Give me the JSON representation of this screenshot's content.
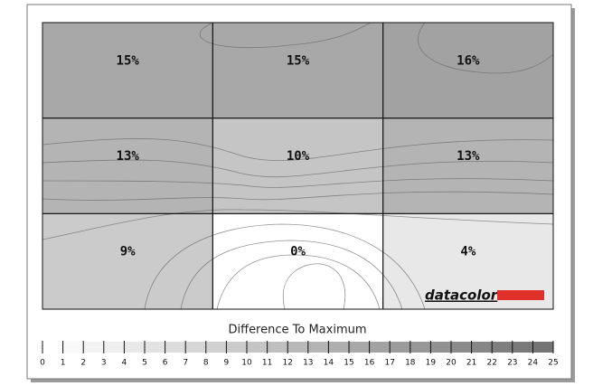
{
  "chart_data": {
    "type": "heatmap",
    "values": [
      [
        15,
        15,
        16
      ],
      [
        13,
        10,
        13
      ],
      [
        9,
        0,
        4
      ]
    ],
    "value_labels": [
      [
        "15%",
        "15%",
        "16%"
      ],
      [
        "13%",
        "10%",
        "13%"
      ],
      [
        "9%",
        "0%",
        "4%"
      ]
    ],
    "logo": "datacolor",
    "colorbar": {
      "label": "Difference To Maximum",
      "lim": [
        0,
        25
      ],
      "ticks": [
        0,
        1,
        2,
        3,
        4,
        5,
        6,
        7,
        8,
        9,
        10,
        11,
        12,
        13,
        14,
        15,
        16,
        17,
        18,
        19,
        20,
        21,
        22,
        23,
        24,
        25
      ],
      "colors": [
        "#ffffff",
        "#6e6e6e"
      ]
    }
  }
}
